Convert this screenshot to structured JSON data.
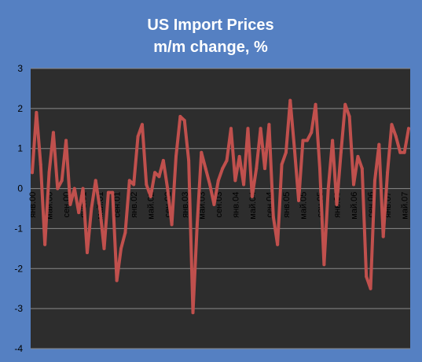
{
  "chart_data": {
    "type": "line",
    "title": "US Import Prices",
    "subtitle": "m/m change, %",
    "xlabel": "",
    "ylabel": "",
    "ylim": [
      -4,
      3
    ],
    "yticks": [
      "3",
      "2",
      "1",
      "0",
      "-1",
      "-2",
      "-3",
      "-4"
    ],
    "grid": true,
    "legend": "none",
    "x_tick_labels": [
      {
        "label": "янв.00",
        "index": 0
      },
      {
        "label": "май.00",
        "index": 4
      },
      {
        "label": "сен.00",
        "index": 8
      },
      {
        "label": "янв.01",
        "index": 12
      },
      {
        "label": "май.01",
        "index": 16
      },
      {
        "label": "сен.01",
        "index": 20
      },
      {
        "label": "янв.02",
        "index": 24
      },
      {
        "label": "май.02",
        "index": 28
      },
      {
        "label": "сен.02",
        "index": 32
      },
      {
        "label": "янв.03",
        "index": 36
      },
      {
        "label": "май.03",
        "index": 40
      },
      {
        "label": "сен.03",
        "index": 44
      },
      {
        "label": "янв.04",
        "index": 48
      },
      {
        "label": "май.04",
        "index": 52
      },
      {
        "label": "сен.04",
        "index": 56
      },
      {
        "label": "янв.05",
        "index": 60
      },
      {
        "label": "май.05",
        "index": 64
      },
      {
        "label": "сен.05",
        "index": 68
      },
      {
        "label": "янв.06",
        "index": 72
      },
      {
        "label": "май.06",
        "index": 76
      },
      {
        "label": "сен.06",
        "index": 80
      },
      {
        "label": "янв.07",
        "index": 84
      },
      {
        "label": "май.07",
        "index": 88
      }
    ],
    "series": [
      {
        "values": [
          0.4,
          1.9,
          0.6,
          -1.4,
          0.4,
          1.4,
          0.0,
          0.2,
          1.2,
          -0.4,
          0.0,
          -0.6,
          0.0,
          -1.6,
          -0.5,
          0.2,
          -0.5,
          -1.5,
          -0.1,
          -0.1,
          -2.3,
          -1.5,
          -1.1,
          0.2,
          0.1,
          1.3,
          1.6,
          0.1,
          -0.2,
          0.4,
          0.3,
          0.7,
          0.0,
          -0.9,
          0.8,
          1.8,
          1.7,
          0.7,
          -3.1,
          -0.9,
          0.9,
          0.5,
          0.1,
          -0.4,
          0.2,
          0.5,
          0.7,
          1.5,
          0.2,
          0.8,
          0.1,
          1.5,
          -0.2,
          0.5,
          1.5,
          0.5,
          1.6,
          -0.7,
          -1.4,
          0.6,
          0.9,
          2.2,
          1.0,
          -0.3,
          1.2,
          1.2,
          1.4,
          2.1,
          0.5,
          -1.9,
          0.0,
          1.2,
          -0.4,
          0.9,
          2.1,
          1.8,
          0.1,
          0.8,
          0.5,
          -2.2,
          -2.5,
          0.2,
          1.1,
          -1.2,
          0.4,
          1.6,
          1.3,
          0.9,
          0.9,
          1.5
        ]
      }
    ]
  },
  "colors": {
    "background": "#5580c2",
    "plot_area": "#2d2d2d",
    "grid": "#8a8a8a",
    "line": "#c0504d",
    "text": "#ffffff",
    "axis_text": "#000000"
  }
}
